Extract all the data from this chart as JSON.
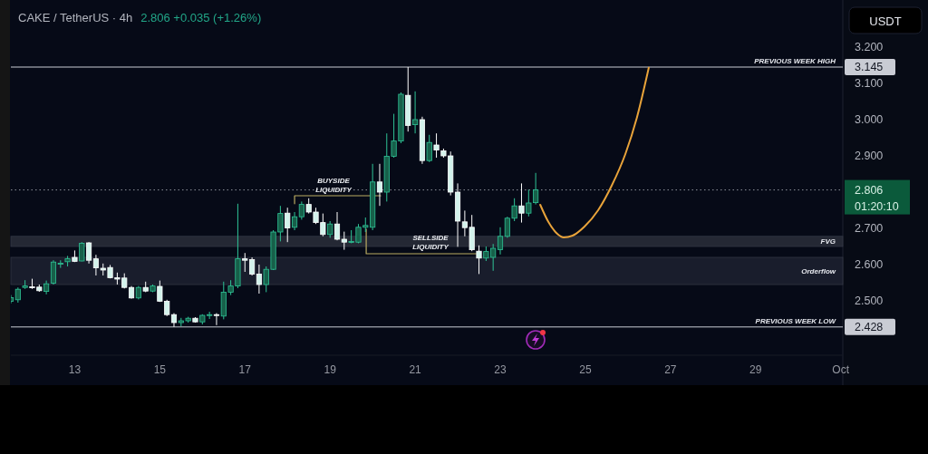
{
  "chart_data": {
    "type": "candlestick",
    "title": "CAKE / TetherUS · 4h",
    "subtitle": "2.806 +0.035 (+1.26%)",
    "ylabel": "USDT",
    "x": [
      11.5,
      11.667,
      11.833,
      12,
      12.167,
      12.333,
      12.5,
      12.667,
      12.833,
      13,
      13.167,
      13.333,
      13.5,
      13.667,
      13.833,
      14,
      14.167,
      14.333,
      14.5,
      14.667,
      14.833,
      15,
      15.167,
      15.333,
      15.5,
      15.667,
      15.833,
      16,
      16.167,
      16.333,
      16.5,
      16.667,
      16.833,
      17,
      17.167,
      17.333,
      17.5,
      17.667,
      17.833,
      18,
      18.167,
      18.333,
      18.5,
      18.667,
      18.833,
      19,
      19.167,
      19.333,
      19.5,
      19.667,
      19.833,
      20,
      20.167,
      20.333,
      20.5,
      20.667,
      20.833,
      21,
      21.167,
      21.333,
      21.5,
      21.667,
      21.833,
      22,
      22.167,
      22.333,
      22.5,
      22.667,
      22.833,
      23,
      23.167,
      23.333,
      23.5,
      23.667,
      23.833
    ],
    "ohlc": [
      [
        2.499,
        2.516,
        2.493,
        2.509
      ],
      [
        2.503,
        2.537,
        2.495,
        2.532
      ],
      [
        2.537,
        2.557,
        2.533,
        2.541
      ],
      [
        2.539,
        2.561,
        2.533,
        2.536
      ],
      [
        2.538,
        2.545,
        2.525,
        2.528
      ],
      [
        2.526,
        2.556,
        2.518,
        2.547
      ],
      [
        2.549,
        2.612,
        2.545,
        2.607
      ],
      [
        2.601,
        2.612,
        2.591,
        2.604
      ],
      [
        2.608,
        2.624,
        2.595,
        2.616
      ],
      [
        2.62,
        2.639,
        2.607,
        2.609
      ],
      [
        2.61,
        2.662,
        2.609,
        2.659
      ],
      [
        2.66,
        2.662,
        2.603,
        2.612
      ],
      [
        2.616,
        2.627,
        2.57,
        2.591
      ],
      [
        2.59,
        2.603,
        2.57,
        2.585
      ],
      [
        2.592,
        2.599,
        2.562,
        2.564
      ],
      [
        2.564,
        2.578,
        2.545,
        2.56
      ],
      [
        2.563,
        2.576,
        2.534,
        2.537
      ],
      [
        2.537,
        2.541,
        2.506,
        2.508
      ],
      [
        2.508,
        2.541,
        2.504,
        2.537
      ],
      [
        2.537,
        2.553,
        2.524,
        2.527
      ],
      [
        2.527,
        2.545,
        2.524,
        2.541
      ],
      [
        2.54,
        2.556,
        2.497,
        2.499
      ],
      [
        2.499,
        2.503,
        2.458,
        2.462
      ],
      [
        2.462,
        2.466,
        2.428,
        2.44
      ],
      [
        2.44,
        2.453,
        2.43,
        2.445
      ],
      [
        2.445,
        2.456,
        2.44,
        2.452
      ],
      [
        2.452,
        2.455,
        2.44,
        2.442
      ],
      [
        2.442,
        2.463,
        2.435,
        2.46
      ],
      [
        2.46,
        2.47,
        2.45,
        2.462
      ],
      [
        2.462,
        2.466,
        2.433,
        2.46
      ],
      [
        2.458,
        2.553,
        2.449,
        2.524
      ],
      [
        2.524,
        2.557,
        2.516,
        2.541
      ],
      [
        2.541,
        2.768,
        2.535,
        2.616
      ],
      [
        2.616,
        2.632,
        2.58,
        2.612
      ],
      [
        2.614,
        2.62,
        2.57,
        2.574
      ],
      [
        2.574,
        2.6,
        2.52,
        2.545
      ],
      [
        2.545,
        2.595,
        2.524,
        2.587
      ],
      [
        2.587,
        2.695,
        2.585,
        2.69
      ],
      [
        2.69,
        2.762,
        2.664,
        2.741
      ],
      [
        2.742,
        2.757,
        2.662,
        2.701
      ],
      [
        2.703,
        2.745,
        2.695,
        2.732
      ],
      [
        2.732,
        2.774,
        2.724,
        2.766
      ],
      [
        2.766,
        2.783,
        2.741,
        2.745
      ],
      [
        2.745,
        2.757,
        2.712,
        2.716
      ],
      [
        2.716,
        2.741,
        2.678,
        2.683
      ],
      [
        2.683,
        2.72,
        2.674,
        2.712
      ],
      [
        2.712,
        2.745,
        2.667,
        2.67
      ],
      [
        2.67,
        2.691,
        2.641,
        2.662
      ],
      [
        2.662,
        2.695,
        2.659,
        2.664
      ],
      [
        2.662,
        2.712,
        2.659,
        2.703
      ],
      [
        2.703,
        2.73,
        2.69,
        2.708
      ],
      [
        2.703,
        2.878,
        2.695,
        2.828
      ],
      [
        2.828,
        2.878,
        2.762,
        2.8
      ],
      [
        2.8,
        2.962,
        2.774,
        2.899
      ],
      [
        2.899,
        3.016,
        2.895,
        2.941
      ],
      [
        2.941,
        3.075,
        2.935,
        3.07
      ],
      [
        3.067,
        3.145,
        2.967,
        2.984
      ],
      [
        2.986,
        3.078,
        2.962,
        3.0
      ],
      [
        3.0,
        3.008,
        2.878,
        2.887
      ],
      [
        2.887,
        2.958,
        2.883,
        2.937
      ],
      [
        2.93,
        2.962,
        2.895,
        2.916
      ],
      [
        2.914,
        2.92,
        2.895,
        2.9
      ],
      [
        2.9,
        2.912,
        2.791,
        2.8
      ],
      [
        2.8,
        2.824,
        2.649,
        2.72
      ],
      [
        2.718,
        2.749,
        2.678,
        2.702
      ],
      [
        2.703,
        2.737,
        2.637,
        2.641
      ],
      [
        2.637,
        2.653,
        2.574,
        2.618
      ],
      [
        2.618,
        2.65,
        2.61,
        2.636
      ],
      [
        2.62,
        2.657,
        2.583,
        2.645
      ],
      [
        2.641,
        2.703,
        2.628,
        2.678
      ],
      [
        2.678,
        2.732,
        2.674,
        2.728
      ],
      [
        2.728,
        2.783,
        2.72,
        2.762
      ],
      [
        2.762,
        2.824,
        2.716,
        2.742
      ],
      [
        2.742,
        2.807,
        2.733,
        2.77
      ],
      [
        2.771,
        2.853,
        2.766,
        2.806
      ]
    ],
    "colors": [
      "#17604a",
      "#17604a",
      "#17604a",
      "#d3f3ec",
      "#d3f3ec",
      "#17604a",
      "#17604a",
      "#17604a",
      "#17604a",
      "#d3f3ec",
      "#17604a",
      "#d3f3ec",
      "#d3f3ec",
      "#d3f3ec",
      "#d3f3ec",
      "#d3f3ec",
      "#d3f3ec",
      "#d3f3ec",
      "#17604a",
      "#d3f3ec",
      "#17604a",
      "#d3f3ec",
      "#d3f3ec",
      "#d3f3ec",
      "#17604a",
      "#17604a",
      "#d3f3ec",
      "#17604a",
      "#17604a",
      "#d3f3ec",
      "#17604a",
      "#17604a",
      "#17604a",
      "#d3f3ec",
      "#d3f3ec",
      "#d3f3ec",
      "#17604a",
      "#17604a",
      "#17604a",
      "#d3f3ec",
      "#17604a",
      "#17604a",
      "#d3f3ec",
      "#d3f3ec",
      "#d3f3ec",
      "#17604a",
      "#d3f3ec",
      "#d3f3ec",
      "#17604a",
      "#17604a",
      "#17604a",
      "#17604a",
      "#d3f3ec",
      "#17604a",
      "#17604a",
      "#17604a",
      "#d3f3ec",
      "#17604a",
      "#d3f3ec",
      "#17604a",
      "#d3f3ec",
      "#d3f3ec",
      "#d3f3ec",
      "#d3f3ec",
      "#d3f3ec",
      "#d3f3ec",
      "#d3f3ec",
      "#17604a",
      "#17604a",
      "#17604a",
      "#17604a",
      "#17604a",
      "#d3f3ec",
      "#17604a",
      "#17604a"
    ],
    "series": [
      {
        "type": "line",
        "color": "#e8a33a",
        "x": [
          23.94,
          24.13,
          24.34,
          24.49,
          24.7,
          24.98,
          25.3,
          25.62,
          25.94,
          26.21,
          26.49
        ],
        "values": [
          2.765,
          2.718,
          2.685,
          2.675,
          2.68,
          2.705,
          2.75,
          2.818,
          2.905,
          3.005,
          3.143
        ]
      },
      {
        "type": "line",
        "color": "#b9ab62",
        "x": [
          18.167,
          18.167,
          20.19
        ],
        "values": [
          2.768,
          2.79,
          2.79
        ]
      },
      {
        "type": "line",
        "color": "#b9ab62",
        "x": [
          19.85,
          19.85,
          22.43
        ],
        "values": [
          2.698,
          2.63,
          2.63
        ]
      }
    ],
    "annotations": [
      "BUYSIDE LIQUIDITY",
      "SELLSIDE LIQUIDITY",
      "01:20:10"
    ],
    "ref_lines": [
      {
        "axis": "y",
        "value": 3.145,
        "label": "PREVIOUS WEEK HIGH",
        "color": "#c9ccd4"
      },
      {
        "axis": "y",
        "value": 2.428,
        "label": "PREVIOUS WEEK LOW",
        "color": "#c9ccd4"
      },
      {
        "axis": "y",
        "value": 2.806,
        "color": "#8e929c",
        "line_style": "dotted"
      }
    ],
    "bands": [
      {
        "axis": "y",
        "from": 2.65,
        "to": 2.678,
        "label": "FVG",
        "color": "#2a2e3a"
      },
      {
        "axis": "y",
        "from": 2.545,
        "to": 2.62,
        "label": "Orderflow",
        "color": "#1d2130"
      }
    ],
    "xlim": [
      11.5,
      31.05
    ],
    "ylim": [
      2.35,
      3.33
    ],
    "xticks": [
      13,
      15,
      17,
      19,
      21,
      23,
      25,
      27,
      29,
      {
        "value": 31,
        "label": "Oct"
      }
    ],
    "yticks": [
      {
        "value": 2.428,
        "label": "2.428"
      },
      {
        "value": 2.5,
        "label": "2.500"
      },
      {
        "value": 2.6,
        "label": "2.600"
      },
      {
        "value": 2.7,
        "label": "2.700"
      },
      {
        "value": 2.806,
        "label": "2.806"
      },
      {
        "value": 2.9,
        "label": "2.900"
      },
      {
        "value": 3.0,
        "label": "3.000"
      },
      {
        "value": 3.1,
        "label": "3.100"
      },
      {
        "value": 3.145,
        "label": "3.145"
      },
      {
        "value": 3.2,
        "label": "3.200"
      }
    ]
  }
}
